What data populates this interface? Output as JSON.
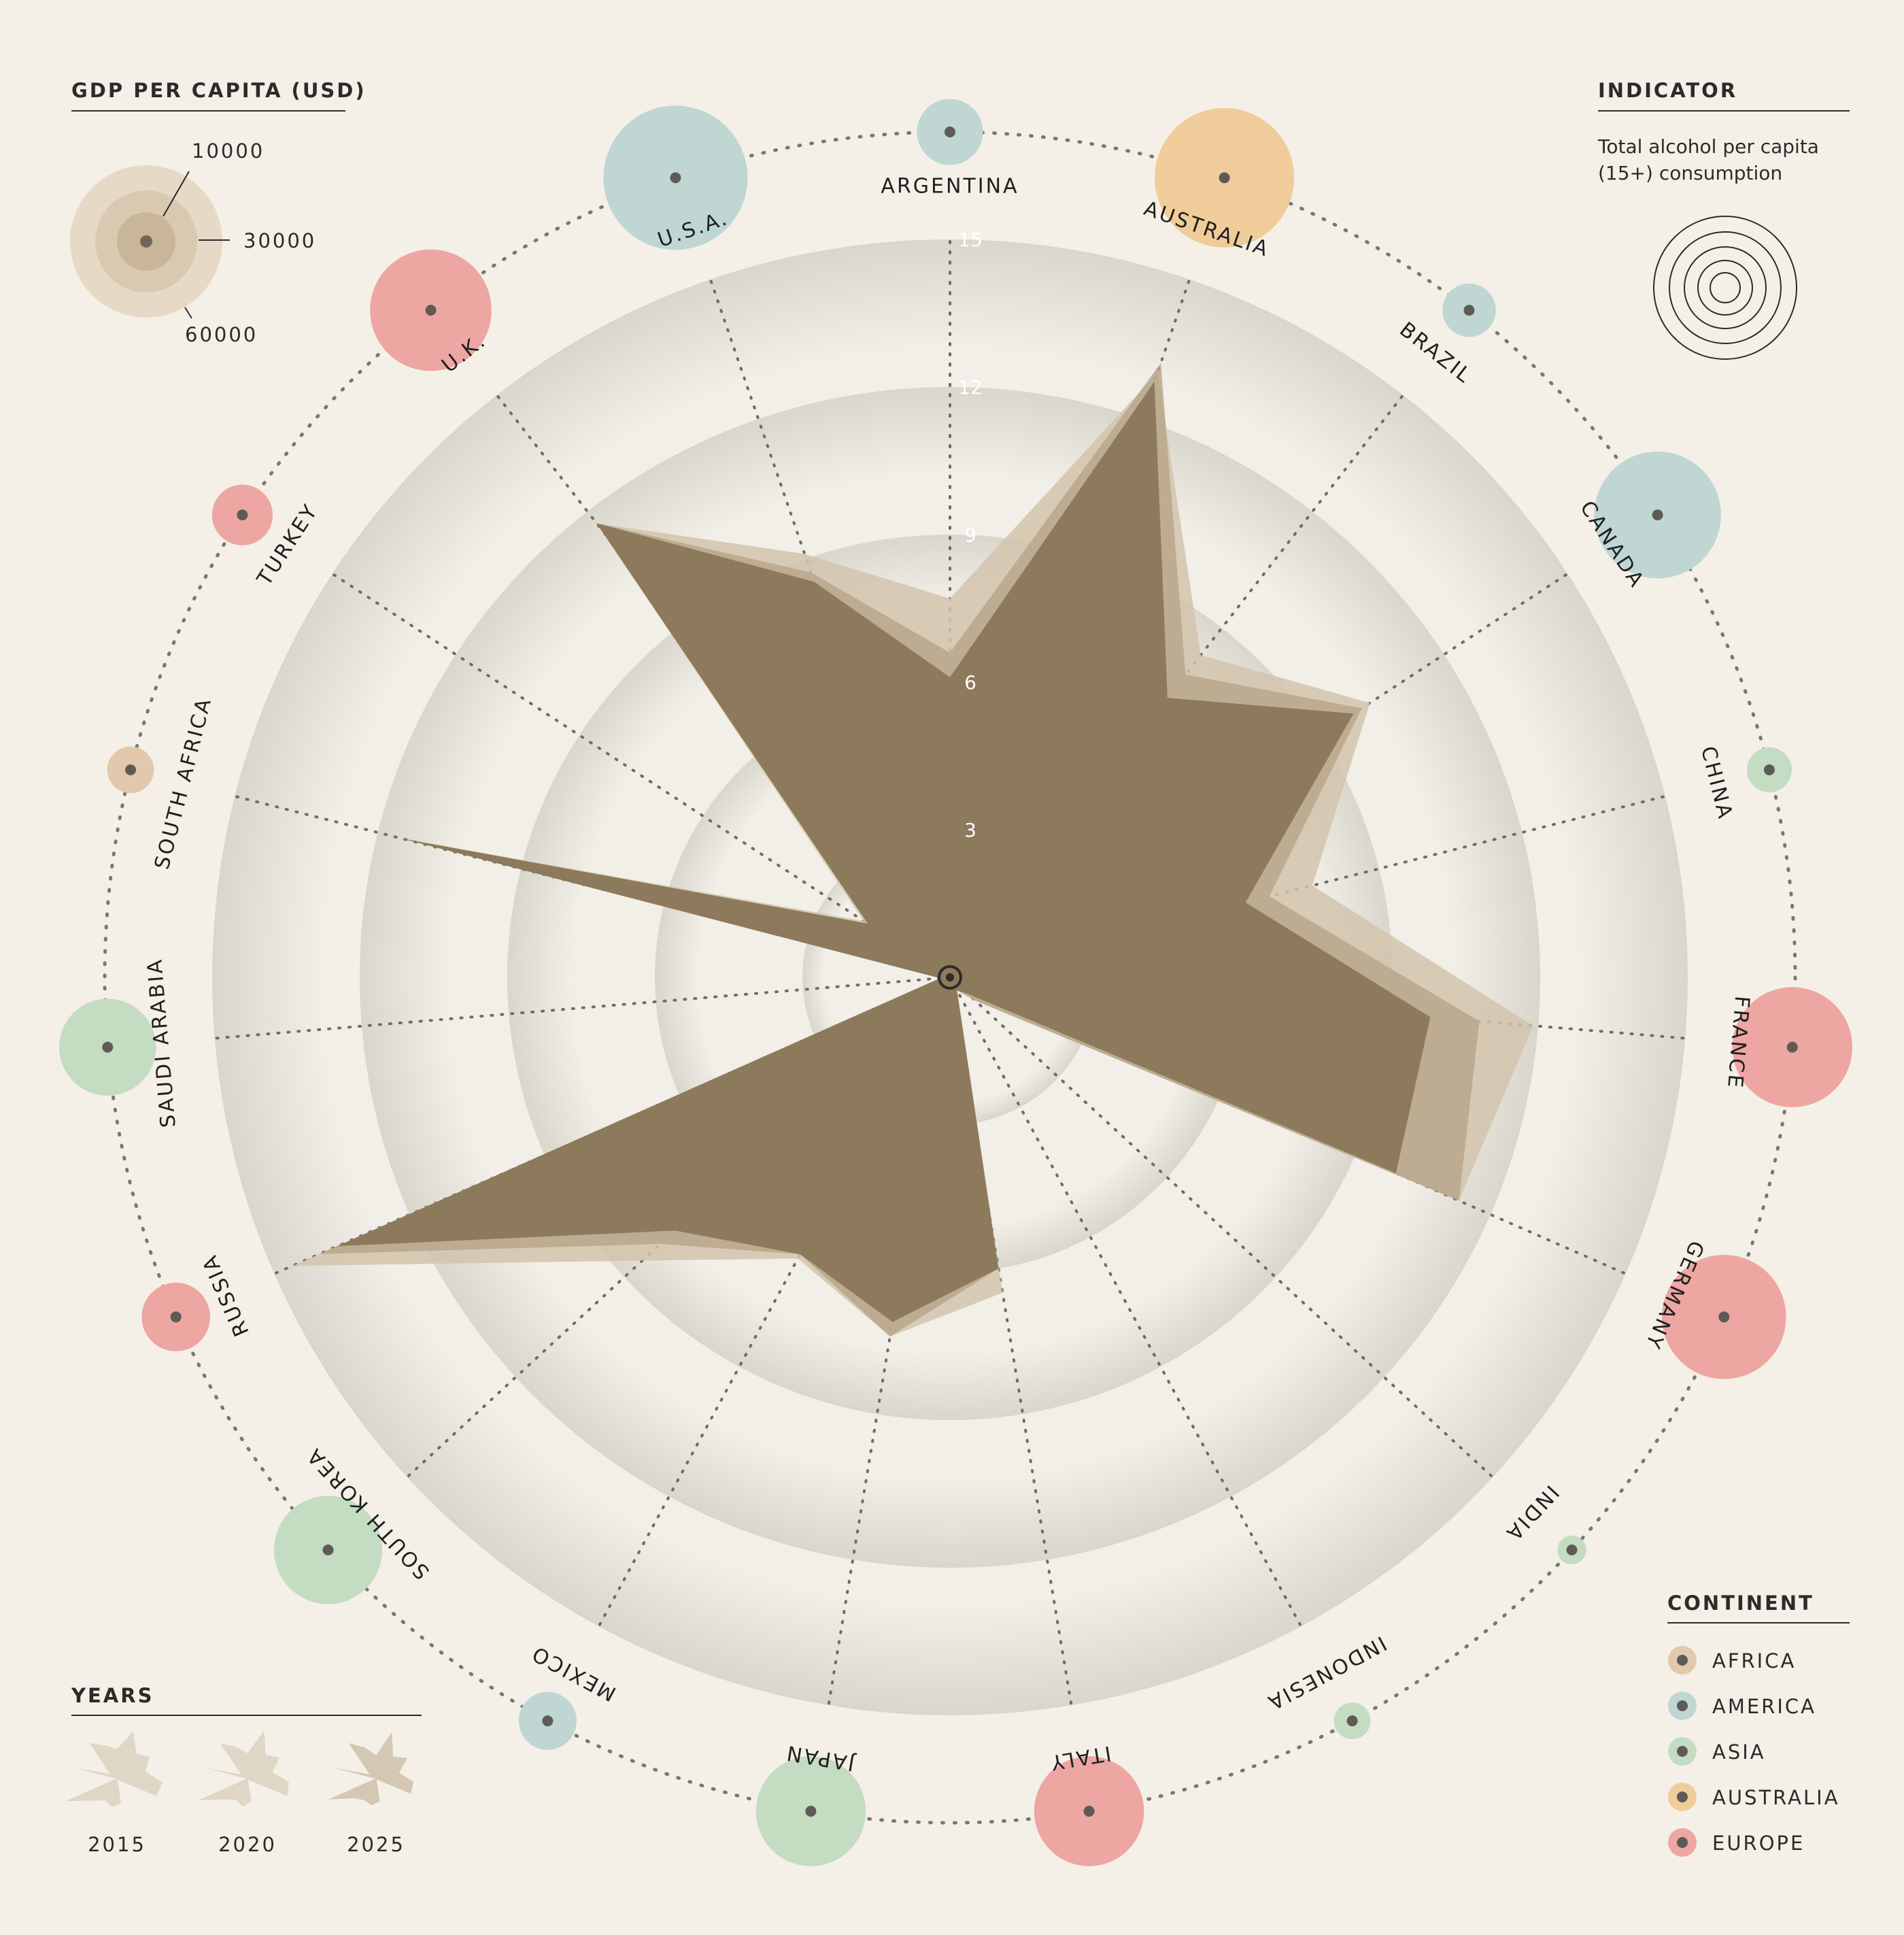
{
  "legend_gdp": {
    "title": "GDP PER CAPITA (USD)",
    "levels": [
      "10000",
      "30000",
      "60000"
    ]
  },
  "legend_indicator": {
    "title": "INDICATOR",
    "line1": "Total alcohol per capita",
    "line2": "(15+) consumption"
  },
  "legend_continent": {
    "title": "CONTINENT",
    "items": [
      {
        "name": "AFRICA",
        "color": "#e2c9ad"
      },
      {
        "name": "AMERICA",
        "color": "#bfd6d3"
      },
      {
        "name": "ASIA",
        "color": "#c4dcc2"
      },
      {
        "name": "AUSTRALIA",
        "color": "#efcc99"
      },
      {
        "name": "EUROPE",
        "color": "#eda6a2"
      }
    ]
  },
  "legend_years": {
    "title": "YEARS",
    "items": [
      "2015",
      "2020",
      "2025"
    ]
  },
  "chart_data": {
    "type": "radar",
    "indicator": "Total alcohol per capita (15+) consumption",
    "r_ticks": [
      3,
      6,
      9,
      12,
      15
    ],
    "r_max": 15,
    "categories": [
      "ARGENTINA",
      "AUSTRALIA",
      "BRAZIL",
      "CANADA",
      "CHINA",
      "FRANCE",
      "GERMANY",
      "INDIA",
      "INDONESIA",
      "ITALY",
      "JAPAN",
      "MEXICO",
      "SOUTH KOREA",
      "RUSSIA",
      "SAUDI ARABIA",
      "SOUTH AFRICA",
      "TURKEY",
      "U.K.",
      "U.S.A."
    ],
    "continents": [
      "AMERICA",
      "AUSTRALIA",
      "AMERICA",
      "AMERICA",
      "ASIA",
      "EUROPE",
      "EUROPE",
      "ASIA",
      "ASIA",
      "EUROPE",
      "ASIA",
      "AMERICA",
      "ASIA",
      "EUROPE",
      "ASIA",
      "AFRICA",
      "EUROPE",
      "EUROPE",
      "AMERICA"
    ],
    "gdp_per_capita": [
      13000,
      58000,
      8500,
      48000,
      6000,
      43000,
      46000,
      2500,
      4000,
      36000,
      36000,
      10000,
      35000,
      14000,
      28000,
      6500,
      11000,
      44000,
      62000
    ],
    "series": [
      {
        "name": "2015",
        "values": [
          7.7,
          13.0,
          8.3,
          10.2,
          7.6,
          11.9,
          11.3,
          0.7,
          0.3,
          6.5,
          7.4,
          6.5,
          8.5,
          14.6,
          0.2,
          11.5,
          2.1,
          11.7,
          9.1
        ]
      },
      {
        "name": "2020",
        "values": [
          6.6,
          13.2,
          7.8,
          10.0,
          6.7,
          10.8,
          11.3,
          0.7,
          0.3,
          6.0,
          7.4,
          6.4,
          8.0,
          14.0,
          0.2,
          11.5,
          2.0,
          11.7,
          8.7
        ]
      },
      {
        "name": "2025",
        "values": [
          6.1,
          12.8,
          7.2,
          9.8,
          6.2,
          9.8,
          9.9,
          0.5,
          0.3,
          6.0,
          7.1,
          6.4,
          7.6,
          13.6,
          0.2,
          11.5,
          2.0,
          11.7,
          8.5
        ]
      }
    ]
  }
}
